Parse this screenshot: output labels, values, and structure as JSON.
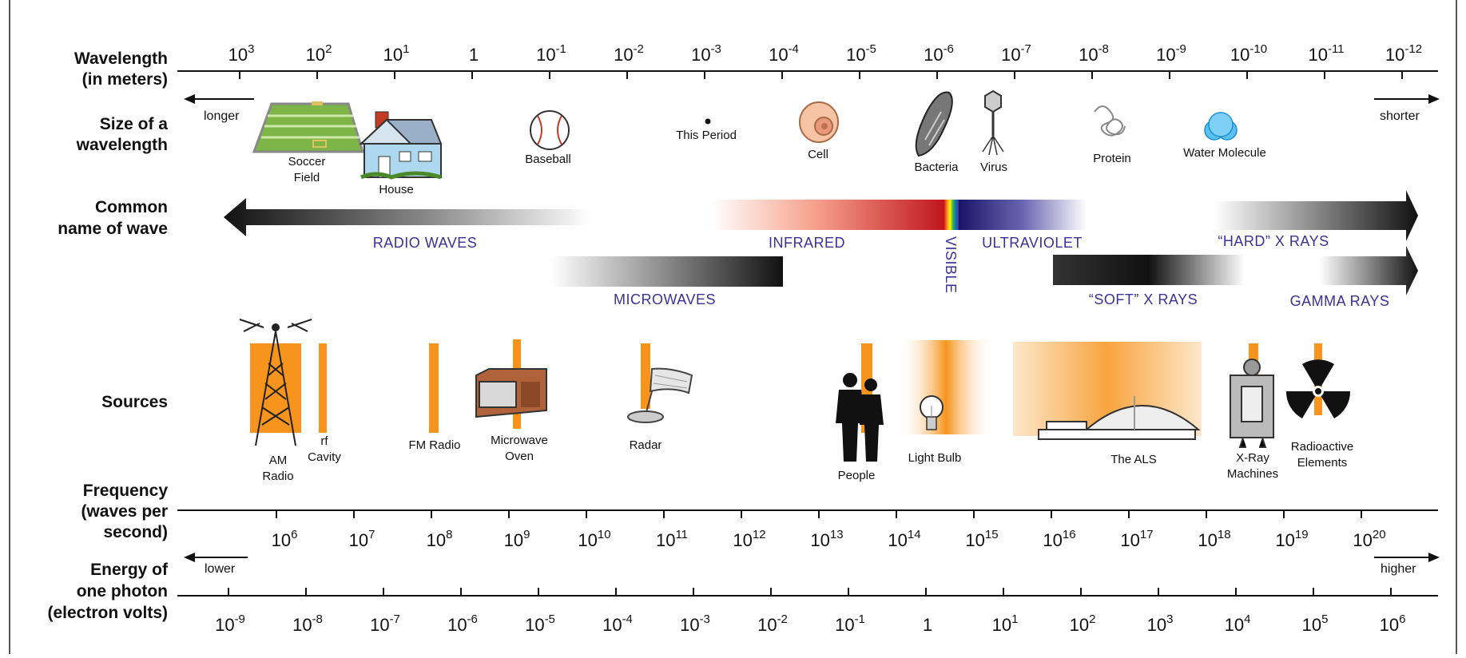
{
  "row_labels": {
    "wavelength": [
      "Wavelength",
      "(in meters)"
    ],
    "size": [
      "Size of a",
      "wavelength"
    ],
    "common": [
      "Common",
      "name of wave"
    ],
    "sources": [
      "Sources"
    ],
    "frequency": [
      "Frequency",
      "(waves per",
      "second)"
    ],
    "energy": [
      "Energy of",
      "one photon",
      "(electron volts)"
    ]
  },
  "wavelength_ticks": [
    {
      "base": "10",
      "exp": "3"
    },
    {
      "base": "10",
      "exp": "2"
    },
    {
      "base": "10",
      "exp": "1"
    },
    {
      "base": "1",
      "exp": ""
    },
    {
      "base": "10",
      "exp": "-1"
    },
    {
      "base": "10",
      "exp": "-2"
    },
    {
      "base": "10",
      "exp": "-3"
    },
    {
      "base": "10",
      "exp": "-4"
    },
    {
      "base": "10",
      "exp": "-5"
    },
    {
      "base": "10",
      "exp": "-6"
    },
    {
      "base": "10",
      "exp": "-7"
    },
    {
      "base": "10",
      "exp": "-8"
    },
    {
      "base": "10",
      "exp": "-9"
    },
    {
      "base": "10",
      "exp": "-10"
    },
    {
      "base": "10",
      "exp": "-11"
    },
    {
      "base": "10",
      "exp": "-12"
    }
  ],
  "frequency_ticks": [
    {
      "base": "10",
      "exp": "6"
    },
    {
      "base": "10",
      "exp": "7"
    },
    {
      "base": "10",
      "exp": "8"
    },
    {
      "base": "10",
      "exp": "9"
    },
    {
      "base": "10",
      "exp": "10"
    },
    {
      "base": "10",
      "exp": "11"
    },
    {
      "base": "10",
      "exp": "12"
    },
    {
      "base": "10",
      "exp": "13"
    },
    {
      "base": "10",
      "exp": "14"
    },
    {
      "base": "10",
      "exp": "15"
    },
    {
      "base": "10",
      "exp": "16"
    },
    {
      "base": "10",
      "exp": "17"
    },
    {
      "base": "10",
      "exp": "18"
    },
    {
      "base": "10",
      "exp": "19"
    },
    {
      "base": "10",
      "exp": "20"
    }
  ],
  "energy_ticks": [
    {
      "base": "10",
      "exp": "-9"
    },
    {
      "base": "10",
      "exp": "-8"
    },
    {
      "base": "10",
      "exp": "-7"
    },
    {
      "base": "10",
      "exp": "-6"
    },
    {
      "base": "10",
      "exp": "-5"
    },
    {
      "base": "10",
      "exp": "-4"
    },
    {
      "base": "10",
      "exp": "-3"
    },
    {
      "base": "10",
      "exp": "-2"
    },
    {
      "base": "10",
      "exp": "-1"
    },
    {
      "base": "1",
      "exp": ""
    },
    {
      "base": "10",
      "exp": "1"
    },
    {
      "base": "10",
      "exp": "2"
    },
    {
      "base": "10",
      "exp": "3"
    },
    {
      "base": "10",
      "exp": "4"
    },
    {
      "base": "10",
      "exp": "5"
    },
    {
      "base": "10",
      "exp": "6"
    }
  ],
  "arrows": {
    "longer": "longer",
    "shorter": "shorter",
    "lower": "lower",
    "higher": "higher"
  },
  "sizes": {
    "soccer": [
      "Soccer",
      "Field"
    ],
    "house": "House",
    "baseball": "Baseball",
    "period": "This Period",
    "cell": "Cell",
    "bacteria": "Bacteria",
    "virus": "Virus",
    "protein": "Protein",
    "water": "Water Molecule"
  },
  "waves": {
    "radio": "RADIO WAVES",
    "infrared": "INFRARED",
    "visible": "VISIBLE",
    "ultraviolet": "ULTRAVIOLET",
    "hard_xray": "“HARD” X RAYS",
    "microwaves": "MICROWAVES",
    "soft_xray": "“SOFT” X RAYS",
    "gamma": "GAMMA RAYS"
  },
  "sources": {
    "am_radio": [
      "AM",
      "Radio"
    ],
    "rf_cavity": [
      "rf",
      "Cavity"
    ],
    "fm_radio": "FM Radio",
    "microwave_oven": [
      "Microwave",
      "Oven"
    ],
    "radar": "Radar",
    "people": "People",
    "light_bulb": "Light Bulb",
    "als": "The ALS",
    "xray_machines": [
      "X-Ray",
      "Machines"
    ],
    "radioactive": [
      "Radioactive",
      "Elements"
    ]
  },
  "colors": {
    "source_orange": "#f7941d",
    "wave_label": "#3a3294",
    "ink": "#111111"
  }
}
